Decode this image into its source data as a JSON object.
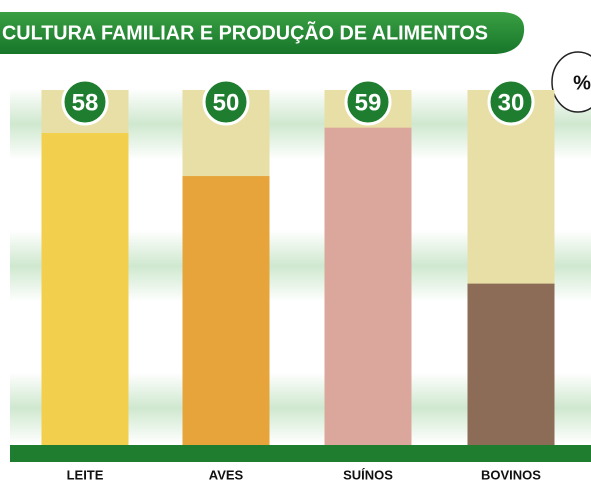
{
  "chart_data": {
    "type": "bar",
    "title": "CULTURA FAMILIAR E PRODUÇÃO DE ALIMENTOS",
    "unit": "%",
    "categories": [
      "LEITE",
      "AVES",
      "SUÍNOS",
      "BOVINOS"
    ],
    "values": [
      58,
      50,
      59,
      30
    ],
    "colors": [
      "#f2d04e",
      "#e6a43a",
      "#dba79c",
      "#8c6c57"
    ],
    "ylim": [
      0,
      66
    ]
  }
}
